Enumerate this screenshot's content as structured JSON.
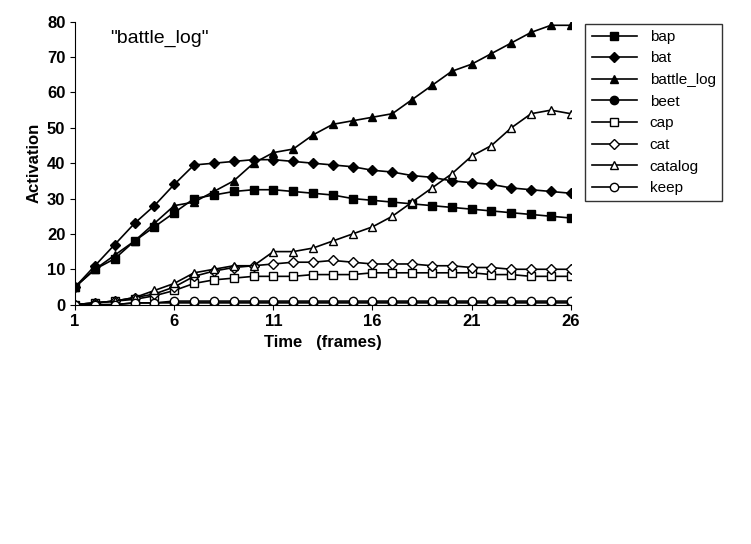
{
  "chart_data": {
    "type": "line",
    "title": "\"battle_log\"",
    "x_label": "Time   (frames)",
    "y_label": "Activation",
    "x": [
      1,
      2,
      3,
      4,
      5,
      6,
      7,
      8,
      9,
      10,
      11,
      12,
      13,
      14,
      15,
      16,
      17,
      18,
      19,
      20,
      21,
      22,
      23,
      24,
      25,
      26
    ],
    "xlim": [
      1,
      26
    ],
    "xticks": [
      1,
      6,
      11,
      16,
      21,
      26
    ],
    "ylim": [
      0,
      80
    ],
    "yticks": [
      0,
      10,
      20,
      30,
      40,
      50,
      60,
      70,
      80
    ],
    "grid": false,
    "legend": "upper right",
    "series": [
      {
        "name": "bap",
        "color": "#000000",
        "marker": "filled_square",
        "values": [
          5,
          10,
          13,
          18,
          22,
          26,
          30,
          31,
          32,
          32.5,
          32.5,
          32,
          31.5,
          31,
          30,
          29.5,
          29,
          28.5,
          28,
          27.5,
          27,
          26.5,
          26,
          25.5,
          25,
          24.5
        ]
      },
      {
        "name": "bat",
        "color": "#000000",
        "marker": "filled_diamond",
        "values": [
          5,
          11,
          17,
          23,
          28,
          34,
          39.5,
          40,
          40.5,
          41,
          41,
          40.5,
          40,
          39.5,
          39,
          38,
          37.5,
          36.5,
          36,
          35,
          34.5,
          34,
          33,
          32.5,
          32,
          31.5
        ]
      },
      {
        "name": "battle_log",
        "color": "#000000",
        "marker": "filled_triangle",
        "values": [
          5,
          10,
          14,
          18,
          23,
          28,
          29,
          32,
          35,
          40,
          43,
          44,
          48,
          51,
          52,
          53,
          54,
          58,
          62,
          66,
          68,
          71,
          74,
          77,
          79,
          79
        ]
      },
      {
        "name": "beet",
        "color": "#000000",
        "marker": "filled_circle",
        "values": [
          0,
          0,
          0,
          0.5,
          0.5,
          0.5,
          0.5,
          0.5,
          0.5,
          0.5,
          0.5,
          0.5,
          0.5,
          0.5,
          0.5,
          0.5,
          0.5,
          0.5,
          0.5,
          0.5,
          0.5,
          0.5,
          0.5,
          0.5,
          0.5,
          0.5
        ]
      },
      {
        "name": "cap",
        "color": "#000000",
        "marker": "open_square",
        "values": [
          0,
          0.5,
          1,
          1.5,
          2.5,
          4,
          6,
          7,
          7.5,
          8,
          8,
          8,
          8.5,
          8.5,
          8.5,
          9,
          9,
          9,
          9,
          9,
          9,
          8.5,
          8.5,
          8,
          8,
          8
        ]
      },
      {
        "name": "cat",
        "color": "#000000",
        "marker": "open_diamond",
        "values": [
          0,
          0.5,
          1,
          2,
          3,
          5,
          8,
          9.5,
          10.5,
          11,
          11.5,
          12,
          12,
          12.5,
          12,
          11.5,
          11.5,
          11.5,
          11,
          11,
          10.5,
          10.5,
          10,
          10,
          10,
          10
        ]
      },
      {
        "name": "catalog",
        "color": "#000000",
        "marker": "open_triangle",
        "values": [
          0,
          0.5,
          1,
          2,
          4,
          6,
          9,
          10,
          11,
          11,
          15,
          15,
          16,
          18,
          20,
          22,
          25,
          29,
          33,
          37,
          42,
          45,
          50,
          54,
          55,
          54
        ]
      },
      {
        "name": "keep",
        "color": "#000000",
        "marker": "open_circle",
        "values": [
          0,
          0,
          0,
          0.5,
          0.5,
          1,
          1,
          1,
          1,
          1,
          1,
          1,
          1,
          1,
          1,
          1,
          1,
          1,
          1,
          1,
          1,
          1,
          1,
          1,
          1,
          1
        ]
      }
    ]
  }
}
